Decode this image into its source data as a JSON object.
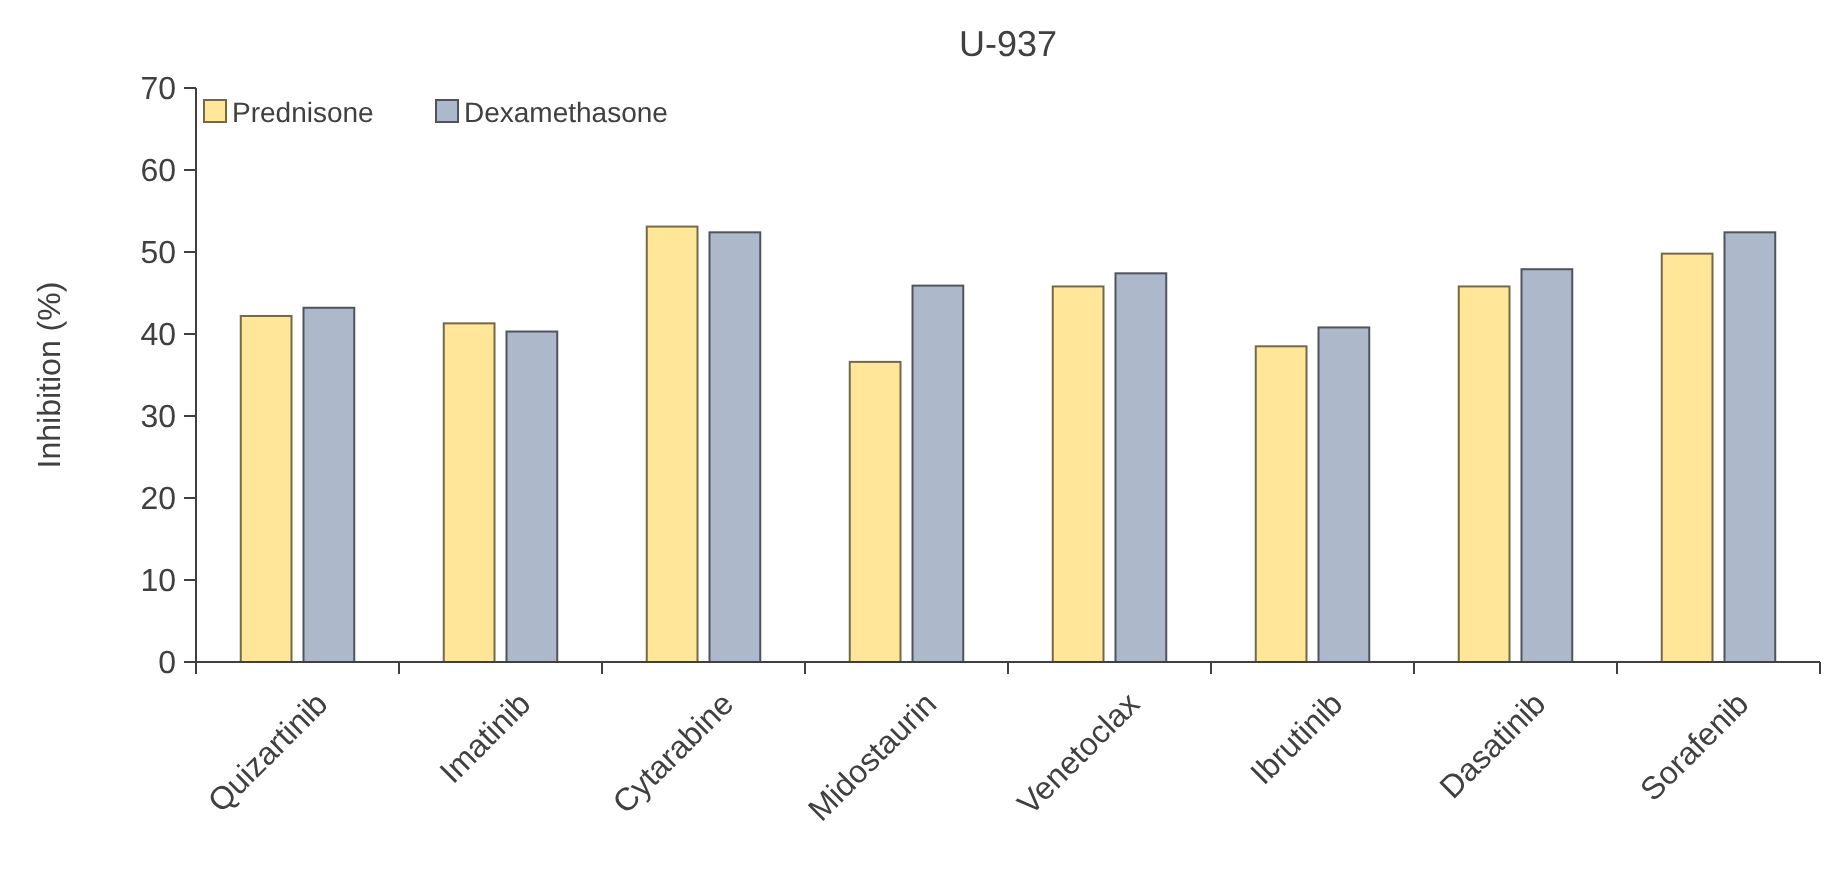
{
  "chart_data": {
    "type": "bar",
    "title": "U-937",
    "ylabel": "Inhibition (%)",
    "categories": [
      "Quizartinib",
      "Imatinib",
      "Cytarabine",
      "Midostaurin",
      "Venetoclax",
      "Ibrutinib",
      "Dasatinib",
      "Sorafenib"
    ],
    "series": [
      {
        "name": "Prednisone",
        "color": "#ffe699",
        "values": [
          42.2,
          41.3,
          53.1,
          36.6,
          45.8,
          38.5,
          45.8,
          49.8
        ]
      },
      {
        "name": "Dexamethasone",
        "color": "#adb9ca",
        "values": [
          43.2,
          40.3,
          52.4,
          45.9,
          47.4,
          40.8,
          47.9,
          52.4
        ]
      }
    ],
    "ylim": [
      0,
      70
    ],
    "yticks": [
      0,
      10,
      20,
      30,
      40,
      50,
      60,
      70
    ],
    "grid": false,
    "legend": "top left"
  }
}
